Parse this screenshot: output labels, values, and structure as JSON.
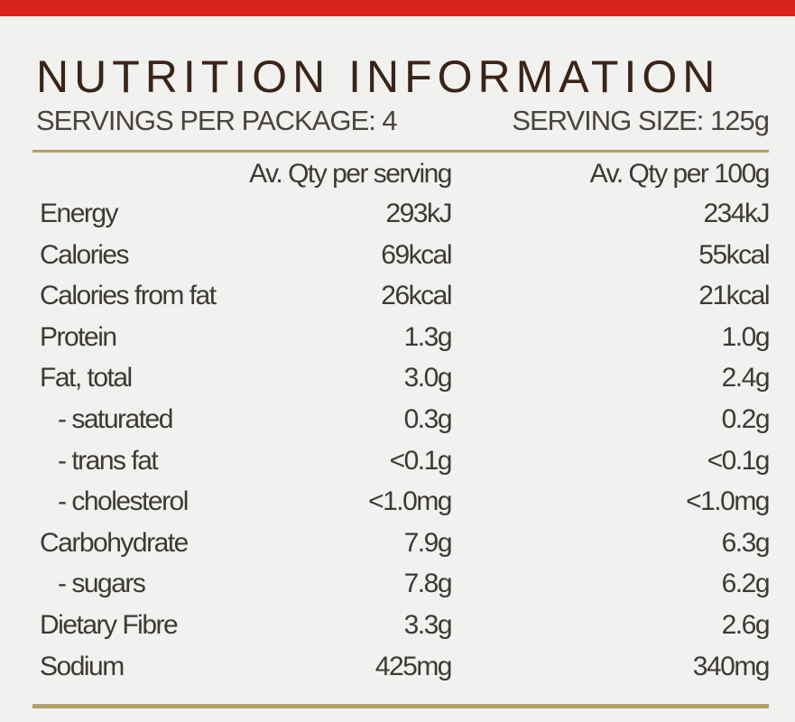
{
  "header": {
    "title": "NUTRITION INFORMATION",
    "servings": "SERVINGS PER PACKAGE: 4",
    "serving_size": "SERVING SIZE: 125g"
  },
  "table": {
    "columns": [
      "Av. Qty per serving",
      "Av. Qty per 100g"
    ],
    "rows": [
      [
        "Energy",
        "293kJ",
        "234kJ"
      ],
      [
        "Calories",
        "69kcal",
        "55kcal"
      ],
      [
        "Calories from fat",
        "26kcal",
        "21kcal"
      ],
      [
        "Protein",
        "1.3g",
        "1.0g"
      ],
      [
        "Fat, total",
        "3.0g",
        "2.4g"
      ],
      [
        "- saturated",
        "0.3g",
        "0.2g"
      ],
      [
        "- trans fat",
        "<0.1g",
        "<0.1g"
      ],
      [
        "- cholesterol",
        "<1.0mg",
        "<1.0mg"
      ],
      [
        "Carbohydrate",
        "7.9g",
        "6.3g"
      ],
      [
        "- sugars",
        "7.8g",
        "6.2g"
      ],
      [
        "Dietary Fibre",
        "3.3g",
        "2.6g"
      ],
      [
        "Sodium",
        "425mg",
        "340mg"
      ]
    ]
  }
}
